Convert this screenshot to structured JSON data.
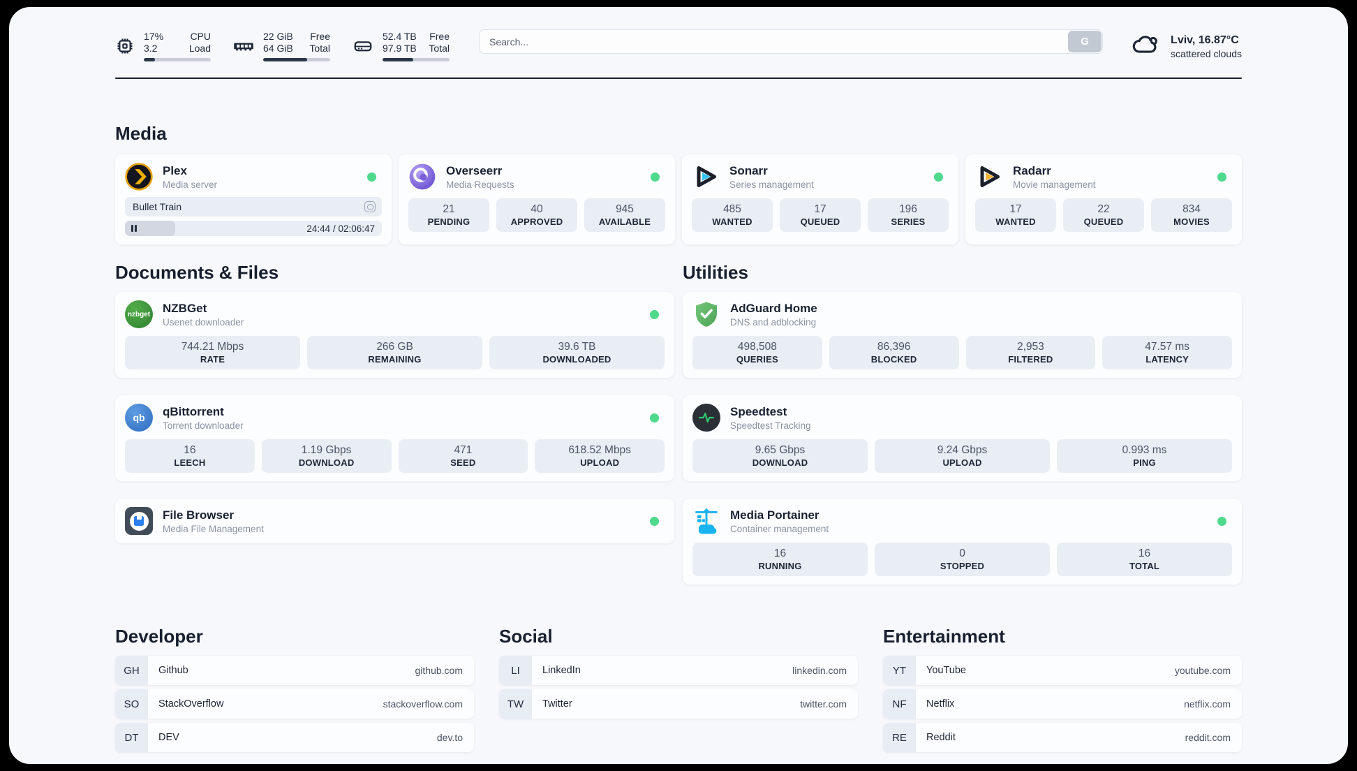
{
  "colors": {
    "accent_green": "#4ed98c",
    "navy": "#1c2637",
    "pill_bg": "#e9edf4"
  },
  "header": {
    "cpu": {
      "value1": "17%",
      "value2": "3.2",
      "label1": "CPU",
      "label2": "Load",
      "progress": 17
    },
    "ram": {
      "value1": "22 GiB",
      "value2": "64 GiB",
      "label1": "Free",
      "label2": "Total",
      "progress": 66
    },
    "disk": {
      "value1": "52.4 TB",
      "value2": "97.9 TB",
      "label1": "Free",
      "label2": "Total",
      "progress": 46
    },
    "search": {
      "placeholder": "Search...",
      "button_label": "G"
    },
    "weather": {
      "location_temp": "Lviv, 16.87°C",
      "condition": "scattered clouds"
    }
  },
  "sections": {
    "media": {
      "title": "Media",
      "plex": {
        "name": "Plex",
        "subtitle": "Media server",
        "now_playing": "Bullet Train",
        "time_display": "24:44 / 02:06:47",
        "progress": 19.5
      },
      "overseerr": {
        "name": "Overseerr",
        "subtitle": "Media Requests",
        "stats": [
          {
            "value": "21",
            "label": "PENDING"
          },
          {
            "value": "40",
            "label": "APPROVED"
          },
          {
            "value": "945",
            "label": "AVAILABLE"
          }
        ]
      },
      "sonarr": {
        "name": "Sonarr",
        "subtitle": "Series management",
        "stats": [
          {
            "value": "485",
            "label": "WANTED"
          },
          {
            "value": "17",
            "label": "QUEUED"
          },
          {
            "value": "196",
            "label": "SERIES"
          }
        ]
      },
      "radarr": {
        "name": "Radarr",
        "subtitle": "Movie management",
        "stats": [
          {
            "value": "17",
            "label": "WANTED"
          },
          {
            "value": "22",
            "label": "QUEUED"
          },
          {
            "value": "834",
            "label": "MOVIES"
          }
        ]
      }
    },
    "documents": {
      "title": "Documents & Files",
      "nzbget": {
        "name": "NZBGet",
        "subtitle": "Usenet downloader",
        "icon_text": "nzbget",
        "stats": [
          {
            "value": "744.21 Mbps",
            "label": "RATE"
          },
          {
            "value": "266 GB",
            "label": "REMAINING"
          },
          {
            "value": "39.6 TB",
            "label": "DOWNLOADED"
          }
        ]
      },
      "qbittorrent": {
        "name": "qBittorrent",
        "subtitle": "Torrent downloader",
        "icon_text": "qb",
        "stats": [
          {
            "value": "16",
            "label": "LEECH"
          },
          {
            "value": "1.19 Gbps",
            "label": "DOWNLOAD"
          },
          {
            "value": "471",
            "label": "SEED"
          },
          {
            "value": "618.52 Mbps",
            "label": "UPLOAD"
          }
        ]
      },
      "filebrowser": {
        "name": "File Browser",
        "subtitle": "Media File Management"
      }
    },
    "utilities": {
      "title": "Utilities",
      "adguard": {
        "name": "AdGuard Home",
        "subtitle": "DNS and adblocking",
        "stats": [
          {
            "value": "498,508",
            "label": "QUERIES"
          },
          {
            "value": "86,396",
            "label": "BLOCKED"
          },
          {
            "value": "2,953",
            "label": "FILTERED"
          },
          {
            "value": "47.57 ms",
            "label": "LATENCY"
          }
        ]
      },
      "speedtest": {
        "name": "Speedtest",
        "subtitle": "Speedtest Tracking",
        "stats": [
          {
            "value": "9.65 Gbps",
            "label": "DOWNLOAD"
          },
          {
            "value": "9.24 Gbps",
            "label": "UPLOAD"
          },
          {
            "value": "0.993 ms",
            "label": "PING"
          }
        ]
      },
      "portainer": {
        "name": "Media Portainer",
        "subtitle": "Container management",
        "stats": [
          {
            "value": "16",
            "label": "RUNNING"
          },
          {
            "value": "0",
            "label": "STOPPED"
          },
          {
            "value": "16",
            "label": "TOTAL"
          }
        ]
      }
    },
    "links": {
      "developer": {
        "title": "Developer",
        "items": [
          {
            "abbr": "GH",
            "name": "Github",
            "url": "github.com"
          },
          {
            "abbr": "SO",
            "name": "StackOverflow",
            "url": "stackoverflow.com"
          },
          {
            "abbr": "DT",
            "name": "DEV",
            "url": "dev.to"
          }
        ]
      },
      "social": {
        "title": "Social",
        "items": [
          {
            "abbr": "LI",
            "name": "LinkedIn",
            "url": "linkedin.com"
          },
          {
            "abbr": "TW",
            "name": "Twitter",
            "url": "twitter.com"
          }
        ]
      },
      "entertainment": {
        "title": "Entertainment",
        "items": [
          {
            "abbr": "YT",
            "name": "YouTube",
            "url": "youtube.com"
          },
          {
            "abbr": "NF",
            "name": "Netflix",
            "url": "netflix.com"
          },
          {
            "abbr": "RE",
            "name": "Reddit",
            "url": "reddit.com"
          }
        ]
      }
    }
  }
}
